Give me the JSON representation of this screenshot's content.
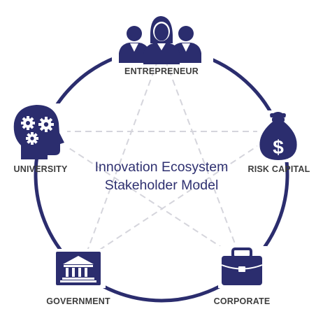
{
  "diagram": {
    "title_line1": "Innovation Ecosystem",
    "title_line2": "Stakeholder Model",
    "colors": {
      "primary": "#2b2d6e",
      "label": "#3d3d3d",
      "dashed": "#d5d5dc",
      "background": "#ffffff"
    },
    "nodes": {
      "entrepreneur": {
        "label": "ENTREPRENEUR",
        "icon": "people-group-icon"
      },
      "risk_capital": {
        "label": "RISK CAPITAL",
        "icon": "money-bag-icon"
      },
      "corporate": {
        "label": "CORPORATE",
        "icon": "briefcase-icon"
      },
      "government": {
        "label": "GOVERNMENT",
        "icon": "government-building-icon"
      },
      "university": {
        "label": "UNIVERSITY",
        "icon": "head-gears-icon"
      }
    }
  }
}
